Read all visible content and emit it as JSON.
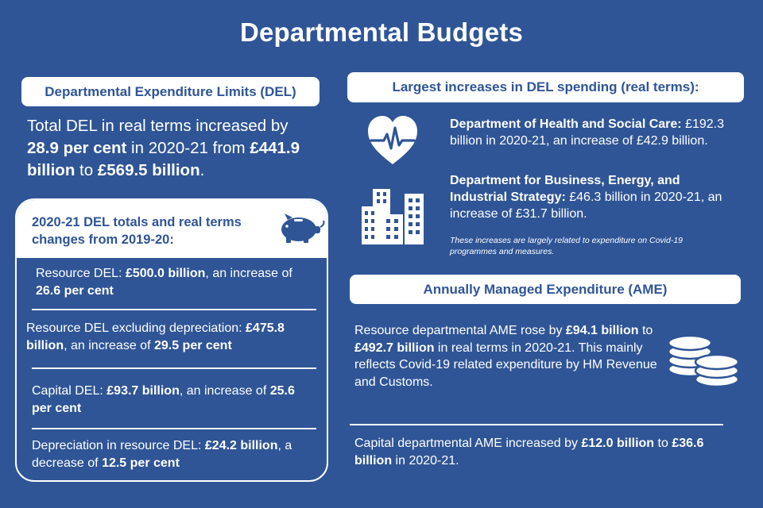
{
  "title": "Departmental Budgets",
  "del": {
    "heading": "Departmental Expenditure Limits (DEL)",
    "lead_1": "Total DEL in real terms increased by ",
    "lead_b1": "28.9 per cent",
    "lead_2": " in 2020-21 from ",
    "lead_b2": "£441.9 billion",
    "lead_3": " to ",
    "lead_b3": "£569.5 billion",
    "lead_4": "."
  },
  "totals": {
    "heading": "2020-21 DEL totals and real terms changes from 2019-20:",
    "icon": "piggy-bank-icon",
    "items": [
      {
        "a": "Resource DEL: ",
        "b": "£500.0 billion",
        "c": ", an increase of ",
        "d": "26.6 per cent"
      },
      {
        "a": "Resource DEL excluding depreciation: ",
        "b": "£475.8 billion",
        "c": ", an increase of ",
        "d": "29.5 per cent"
      },
      {
        "a": "Capital DEL: ",
        "b": "£93.7 billion",
        "c": ", an increase of ",
        "d": "25.6 per cent"
      },
      {
        "a": "Depreciation in resource DEL: ",
        "b": "£24.2 billion",
        "c": ", a decrease of ",
        "d": "12.5 per cent"
      }
    ]
  },
  "largest": {
    "heading": "Largest increases in DEL spending (real terms):",
    "dept1_name": "Department of Health and Social Care:",
    "dept1_text": " £192.3 billion in 2020-21, an increase of £42.9 billion.",
    "dept2_name": "Department for Business, Energy, and Industrial Strategy:",
    "dept2_text": " £46.3 billion in 2020-21, an increase of £31.7 billion.",
    "note": "These increases are largely related to expenditure on Covid-19 programmes and measures.",
    "icons": [
      "heart-rate-icon",
      "buildings-icon"
    ]
  },
  "ame": {
    "heading": "Annually Managed Expenditure (AME)",
    "p1_a": "Resource departmental AME rose by ",
    "p1_b": "£94.1 billion",
    "p1_c": " to ",
    "p1_d": "£492.7 billion",
    "p1_e": " in real terms in 2020-21. This mainly reflects Covid-19 related expenditure by HM Revenue and Customs.",
    "p2_a": "Capital departmental AME increased by ",
    "p2_b": "£12.0 billion",
    "p2_c": " to ",
    "p2_d": "£36.6 billion",
    "p2_e": " in 2020-21.",
    "icon": "coins-icon"
  },
  "colors": {
    "background": "#2f5596",
    "text": "#ffffff"
  }
}
